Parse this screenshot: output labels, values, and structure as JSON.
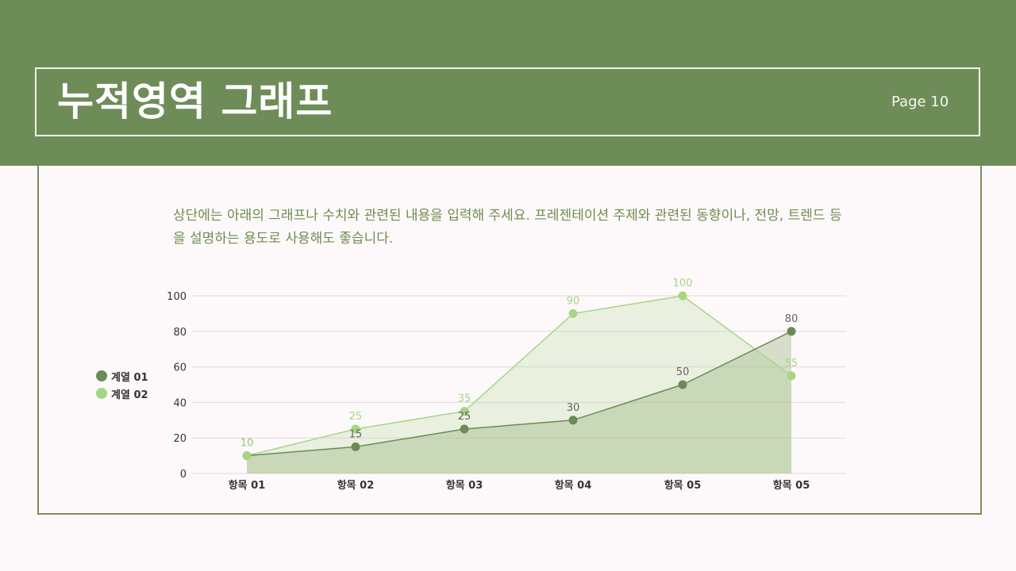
{
  "header": {
    "title": "누적영역 그래프",
    "page_label": "Page 10"
  },
  "description": "상단에는 아래의 그래프나 수치와 관련된 내용을 입력해 주세요. 프레젠테이션 주제와 관련된 동향이나, 전망, 트렌드 등을 설명하는 용도로 사용해도 좋습니다.",
  "colors": {
    "header_bg": "#6e8c58",
    "series_1": "#6b8a57",
    "series_2": "#a6d684",
    "text_green": "#6e8c4e"
  },
  "legend": {
    "items": [
      {
        "label": "계열 01",
        "color": "#6b8a57"
      },
      {
        "label": "계열 02",
        "color": "#a6d684"
      }
    ]
  },
  "chart_data": {
    "type": "area",
    "title": "누적영역 그래프",
    "categories": [
      "항목 01",
      "항목 02",
      "항목 03",
      "항목 04",
      "항목 05",
      "항목 05"
    ],
    "series": [
      {
        "name": "계열 01",
        "values": [
          10,
          15,
          25,
          30,
          50,
          80
        ],
        "color": "#6b8a57"
      },
      {
        "name": "계열 02",
        "values": [
          10,
          25,
          35,
          90,
          100,
          55
        ],
        "color": "#a6d684"
      }
    ],
    "y_ticks": [
      "0",
      "20",
      "40",
      "60",
      "80",
      "100"
    ],
    "ylim": [
      0,
      100
    ],
    "xlabel": "",
    "ylabel": "",
    "grid": true,
    "data_labels": true,
    "legend_position": "left"
  }
}
